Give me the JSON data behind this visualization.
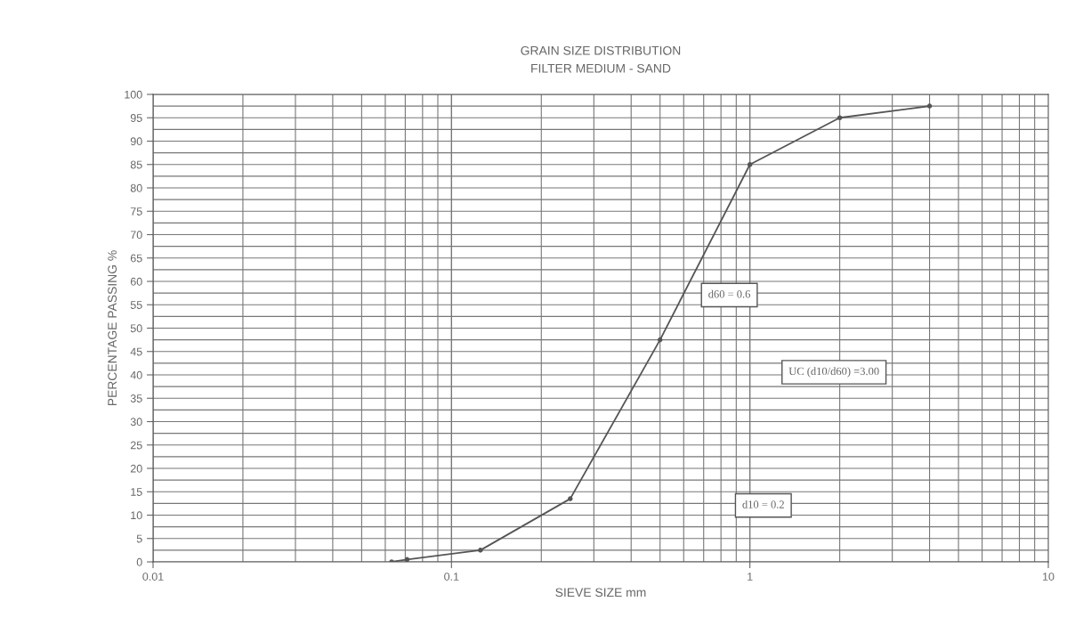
{
  "chart_data": {
    "type": "line",
    "title": "GRAIN SIZE DISTRIBUTION",
    "subtitle": "FILTER MEDIUM - SAND",
    "xlabel": "SIEVE SIZE mm",
    "ylabel": "PERCENTAGE PASSING %",
    "log": "x",
    "x": [
      0.063,
      0.071,
      0.125,
      0.25,
      0.5,
      1,
      2,
      4
    ],
    "series": [
      {
        "color": "#555555",
        "values": [
          0,
          0.5,
          2.5,
          13.5,
          47.5,
          85,
          95,
          97.5
        ]
      }
    ],
    "xlim": [
      0.01,
      10
    ],
    "xticks": [
      {
        "value": 0.01,
        "label": "0.01"
      },
      {
        "value": 0.1,
        "label": "0.1"
      },
      1,
      10
    ],
    "ylim": [
      0,
      100
    ],
    "yticks": [
      0,
      5,
      10,
      15,
      20,
      25,
      30,
      35,
      40,
      45,
      50,
      55,
      60,
      65,
      70,
      75,
      80,
      85,
      90,
      95,
      100
    ],
    "grid": true,
    "marker": "circle",
    "line_style": "solid",
    "annotations": [
      "d10 = 0.2",
      "d60 = 0.6",
      "UC (d10/d60) =3.00"
    ]
  }
}
